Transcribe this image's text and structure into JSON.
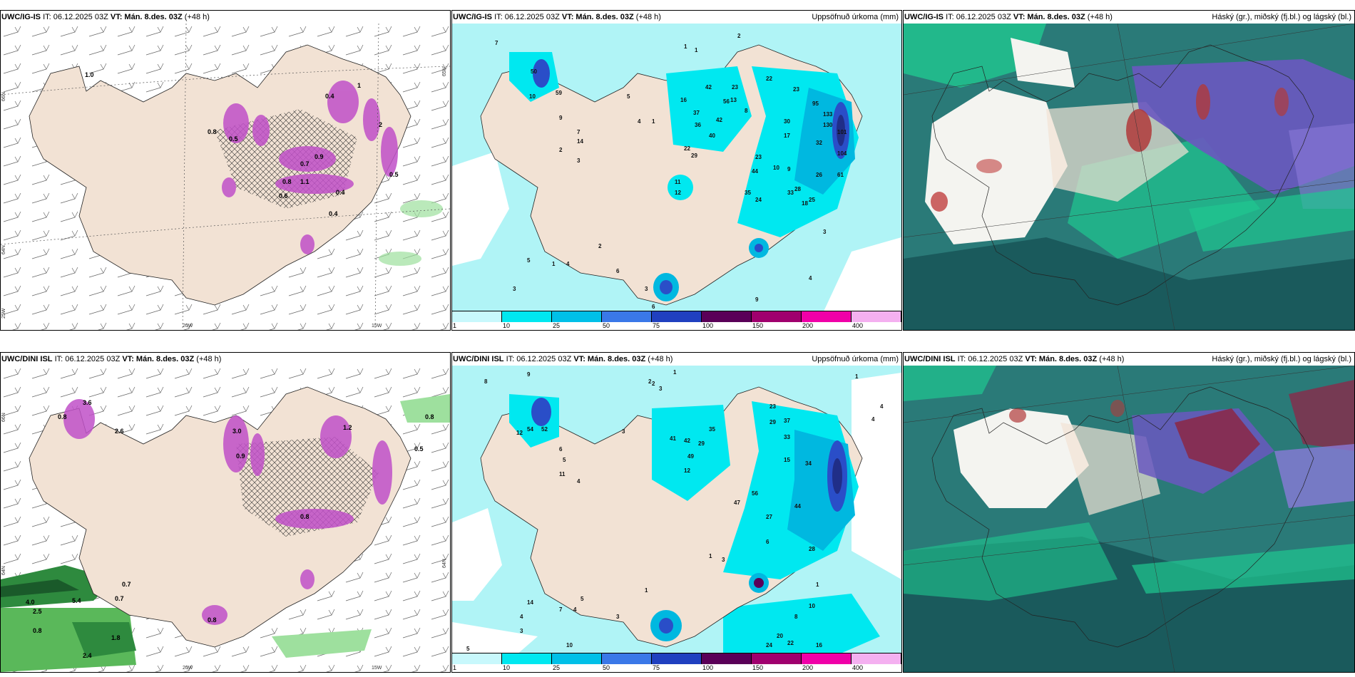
{
  "panels": [
    {
      "id": "ig-wind",
      "model": "UWC/IG-IS",
      "it_text": "IT: 06.12.2025 03Z",
      "vt_label": "VT:",
      "vt_text": "Mán. 8.des. 03Z",
      "lead": "(+48 h)",
      "title": "",
      "lat_labels": [
        "66N",
        "65N",
        "64N",
        "63N"
      ],
      "lon_labels": [
        "20W",
        "15W",
        "25W"
      ],
      "values": [
        "1.0",
        "0.4",
        "1",
        "0.5",
        "0.7",
        "0.8",
        "0.6",
        "0.4",
        "2",
        "0.5",
        "0.4",
        "0.9",
        "0.8",
        "1.1"
      ]
    },
    {
      "id": "ig-precip",
      "model": "UWC/IG-IS",
      "it_text": "IT: 06.12.2025 03Z",
      "vt_label": "VT:",
      "vt_text": "Mán. 8.des. 03Z",
      "lead": "(+48 h)",
      "title": "Uppsöfnuð úrkoma (mm)",
      "values": [
        "7",
        "1",
        "1",
        "2",
        "50",
        "59",
        "10",
        "5",
        "4",
        "1",
        "9",
        "7",
        "14",
        "2",
        "3",
        "16",
        "42",
        "56",
        "23",
        "22",
        "29",
        "13",
        "37",
        "36",
        "40",
        "42",
        "8",
        "22",
        "23",
        "17",
        "30",
        "133",
        "130",
        "32",
        "95",
        "101",
        "104",
        "23",
        "44",
        "10",
        "9",
        "26",
        "11",
        "12",
        "35",
        "24",
        "28",
        "25",
        "18",
        "61",
        "33",
        "3",
        "2",
        "5",
        "1",
        "4",
        "6",
        "3",
        "4",
        "3",
        "9",
        "6"
      ]
    },
    {
      "id": "ig-cloud",
      "model": "UWC/IG-IS",
      "it_text": "IT: 06.12.2025 03Z",
      "vt_label": "VT:",
      "vt_text": "Mán. 8.des. 03Z",
      "lead": "(+48 h)",
      "title": "Háský (gr.), miðský (fj.bl.) og lágský (bl.)"
    },
    {
      "id": "dini-wind",
      "model": "UWC/DINI ISL",
      "it_text": "IT: 06.12.2025 03Z",
      "vt_label": "VT:",
      "vt_text": "Mán. 8.des. 03Z",
      "lead": "(+48 h)",
      "title": "",
      "lat_labels": [
        "66N",
        "65N",
        "64N",
        "63N"
      ],
      "lon_labels": [
        "20W",
        "15W"
      ],
      "values": [
        "3.6",
        "0.8",
        "2.6",
        "4.0",
        "2.5",
        "5.4",
        "0.8",
        "0.7",
        "0.7",
        "1.8",
        "2.4",
        "0.5",
        "0.8",
        "3.0",
        "0.9",
        "0.8",
        "1.2",
        "0.8"
      ]
    },
    {
      "id": "dini-precip",
      "model": "UWC/DINI ISL",
      "it_text": "IT: 06.12.2025 03Z",
      "vt_label": "VT:",
      "vt_text": "Mán. 8.des. 03Z",
      "lead": "(+48 h)",
      "title": "Uppsöfnuð úrkoma (mm)",
      "values": [
        "8",
        "9",
        "2",
        "3",
        "1",
        "1",
        "4",
        "4",
        "3",
        "2",
        "54",
        "52",
        "12",
        "6",
        "5",
        "11",
        "4",
        "41",
        "42",
        "49",
        "29",
        "35",
        "23",
        "37",
        "29",
        "33",
        "15",
        "34",
        "47",
        "56",
        "27",
        "44",
        "28",
        "12",
        "6",
        "1",
        "3",
        "14",
        "4",
        "5",
        "7",
        "3",
        "10",
        "24",
        "20",
        "22",
        "16",
        "10",
        "8",
        "1",
        "1",
        "4",
        "3",
        "5"
      ]
    },
    {
      "id": "dini-cloud",
      "model": "UWC/DINI ISL",
      "it_text": "IT: 06.12.2025 03Z",
      "vt_label": "VT:",
      "vt_text": "Mán. 8.des. 03Z",
      "lead": "(+48 h)",
      "title": "Háský (gr.), miðský (fj.bl.) og lágský (bl.)"
    }
  ],
  "precip_colorbar": {
    "ticks": [
      "1",
      "10",
      "25",
      "50",
      "75",
      "100",
      "150",
      "200",
      "400"
    ],
    "colors": [
      "#c8f8fc",
      "#00e8f0",
      "#00c0e8",
      "#3a78e8",
      "#2040c0",
      "#5a0058",
      "#a0006e",
      "#f000a8",
      "#f4b0f0"
    ]
  },
  "colors": {
    "land": "#f2e2d4",
    "sea_light": "#b0f4f6",
    "precip_light": "#00e8f0",
    "precip_mid": "#00b8e0",
    "precip_high": "#2a4ec8",
    "magenta": "#c050c8",
    "cloud_teal": "#2a7a78",
    "cloud_green": "#20c890",
    "cloud_purple": "#6a58c0",
    "cloud_red": "#b03a3a"
  }
}
